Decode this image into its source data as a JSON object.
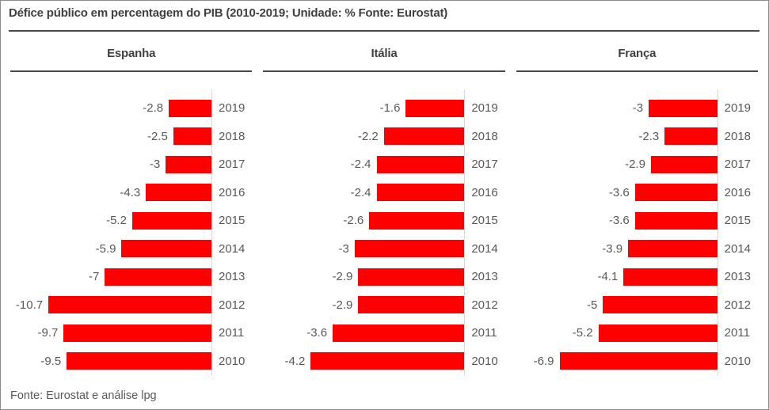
{
  "title": "Défice público em percentagem do PIB (2010-2019; Unidade: % Fonte: Eurostat)",
  "footer": "Fonte: Eurostat e análise lpg",
  "colors": {
    "bar": "#FF0000",
    "label_text": "#595959",
    "heading_text": "#404040",
    "axis_line": "#D9D9D9",
    "rule": "#4A4A4A",
    "frame_border": "#8C8C8C"
  },
  "chart_data": {
    "type": "bar",
    "orientation": "horizontal",
    "unit": "% do PIB",
    "grid": false,
    "legend": "none",
    "categories": [
      "2019",
      "2018",
      "2017",
      "2016",
      "2015",
      "2014",
      "2013",
      "2012",
      "2011",
      "2010"
    ],
    "charts": [
      {
        "name": "Espanha",
        "axis_max_abs": 13.2,
        "values": [
          -2.8,
          -2.5,
          -3,
          -4.3,
          -5.2,
          -5.9,
          -7,
          -10.7,
          -9.7,
          -9.5
        ]
      },
      {
        "name": "Itália",
        "axis_max_abs": 5.5,
        "values": [
          -1.6,
          -2.2,
          -2.4,
          -2.4,
          -2.6,
          -3,
          -2.9,
          -2.9,
          -3.6,
          -4.2
        ]
      },
      {
        "name": "França",
        "axis_max_abs": 8.8,
        "values": [
          -3,
          -2.3,
          -2.9,
          -3.6,
          -3.6,
          -3.9,
          -4.1,
          -5,
          -5.2,
          -6.9
        ]
      }
    ]
  }
}
